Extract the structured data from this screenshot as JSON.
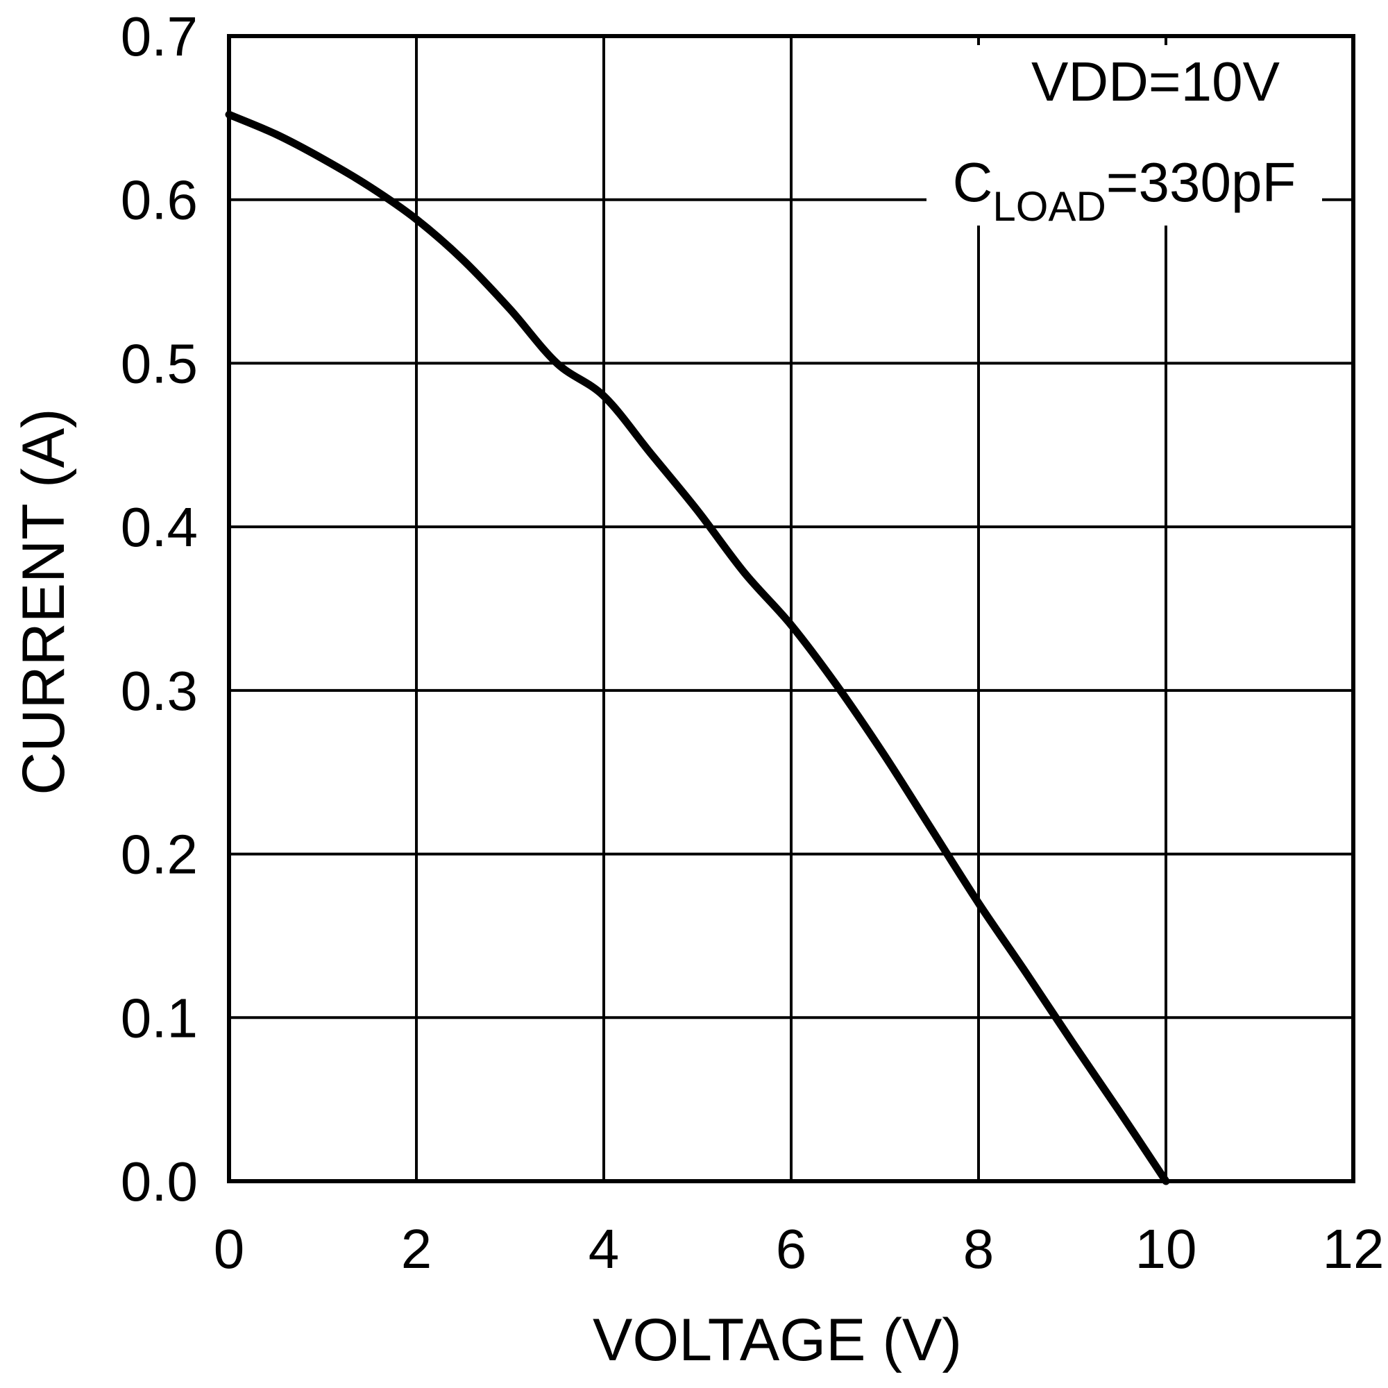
{
  "chart_data": {
    "type": "line",
    "title": "",
    "xlabel": "VOLTAGE (V)",
    "ylabel": "CURRENT (A)",
    "xlim": [
      0,
      12
    ],
    "ylim": [
      0,
      0.7
    ],
    "xticks": [
      0,
      2,
      4,
      6,
      8,
      10,
      12
    ],
    "xtick_labels": [
      "0",
      "2",
      "4",
      "6",
      "8",
      "10",
      "12"
    ],
    "yticks": [
      0,
      0.1,
      0.2,
      0.3,
      0.4,
      0.5,
      0.6,
      0.7
    ],
    "ytick_labels": [
      "0.0",
      "0.1",
      "0.2",
      "0.3",
      "0.4",
      "0.5",
      "0.6",
      "0.7"
    ],
    "grid": true,
    "line_color": "#000000",
    "annotations": {
      "line1": "VDD=10V",
      "line2_main": "C",
      "line2_sub": "LOAD",
      "line2_rest": "=330pF"
    },
    "series": [
      {
        "x": [
          0,
          0.5,
          1,
          1.5,
          2,
          2.5,
          3,
          3.5,
          4,
          4.5,
          5,
          5.5,
          6,
          6.5,
          7,
          7.5,
          8,
          8.5,
          9,
          9.5,
          10
        ],
        "values": [
          0.652,
          0.64,
          0.625,
          0.608,
          0.588,
          0.563,
          0.533,
          0.5,
          0.48,
          0.445,
          0.41,
          0.372,
          0.34,
          0.302,
          0.26,
          0.215,
          0.17,
          0.128,
          0.085,
          0.043,
          0.0
        ]
      }
    ]
  }
}
